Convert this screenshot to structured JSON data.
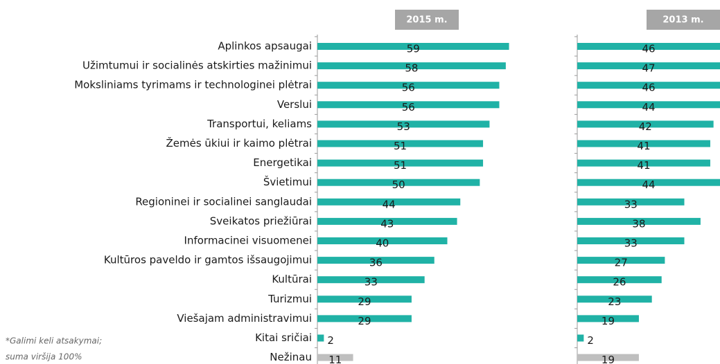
{
  "chart_data": [
    {
      "type": "bar",
      "title": "2015 m.",
      "categories": [
        "Aplinkos apsaugai",
        "Užimtumui ir socialinės atskirties mažinimui",
        "Moksliniams tyrimams ir technologinei plėtrai",
        "Verslui",
        "Transportui, keliams",
        "Žemės ūkiui ir kaimo plėtrai",
        "Energetikai",
        "Švietimui",
        "Regioninei ir socialinei sanglaudai",
        "Sveikatos priežiūrai",
        "Informacinei visuomenei",
        "Kultūros paveldo ir gamtos išsaugojimui",
        "Kultūrai",
        "Turizmui",
        "Viešajam administravimui",
        "Kitai sričiai",
        "Nežinau"
      ],
      "values": [
        59,
        58,
        56,
        56,
        53,
        51,
        51,
        50,
        44,
        43,
        40,
        36,
        33,
        29,
        29,
        2,
        11
      ],
      "colors": [
        "#20b2a6",
        "#20b2a6",
        "#20b2a6",
        "#20b2a6",
        "#20b2a6",
        "#20b2a6",
        "#20b2a6",
        "#20b2a6",
        "#20b2a6",
        "#20b2a6",
        "#20b2a6",
        "#20b2a6",
        "#20b2a6",
        "#20b2a6",
        "#20b2a6",
        "#20b2a6",
        "#bfbfbf"
      ],
      "xlim": [
        0,
        80
      ]
    },
    {
      "type": "bar",
      "title": "2013 m.",
      "values": [
        46,
        47,
        46,
        44,
        42,
        41,
        41,
        44,
        33,
        38,
        33,
        27,
        26,
        23,
        19,
        2,
        19
      ],
      "colors": [
        "#20b2a6",
        "#20b2a6",
        "#20b2a6",
        "#20b2a6",
        "#20b2a6",
        "#20b2a6",
        "#20b2a6",
        "#20b2a6",
        "#20b2a6",
        "#20b2a6",
        "#20b2a6",
        "#20b2a6",
        "#20b2a6",
        "#20b2a6",
        "#20b2a6",
        "#20b2a6",
        "#bfbfbf"
      ],
      "xlim": [
        0,
        44
      ]
    }
  ],
  "notes": [
    "*Galimi keli atsakymai;",
    "suma viršija 100%"
  ]
}
